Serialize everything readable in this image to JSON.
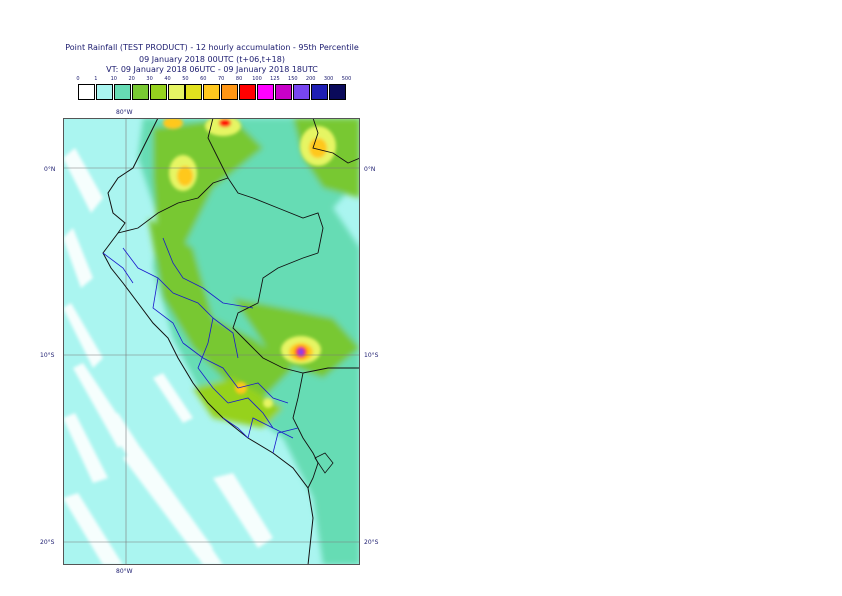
{
  "title": {
    "line1": "Point Rainfall (TEST PRODUCT) - 12 hourly accumulation - 95th Percentile",
    "line2": "09 January 2018 00UTC (t+06,t+18)",
    "line3": "VT: 09 January 2018 06UTC - 09 January 2018 18UTC"
  },
  "legend": {
    "thresholds": [
      "0",
      "1",
      "10",
      "20",
      "30",
      "40",
      "50",
      "60",
      "70",
      "80",
      "100",
      "125",
      "150",
      "200",
      "300",
      "500"
    ],
    "colors": [
      "#ffffff",
      "#aaf5f0",
      "#66dcb4",
      "#78c832",
      "#96d21e",
      "#e6f564",
      "#e1e11e",
      "#ffc81e",
      "#ff9614",
      "#ff0000",
      "#ff00ff",
      "#c800c8",
      "#7846f0",
      "#1e1eb4",
      "#0a0a5a"
    ]
  },
  "axes": {
    "lon_top": "80°W",
    "lon_bottom": "80°W",
    "lat_left": [
      "0°N",
      "10°S",
      "20°S"
    ],
    "lat_right": [
      "0°N",
      "10°S",
      "20°S"
    ]
  }
}
